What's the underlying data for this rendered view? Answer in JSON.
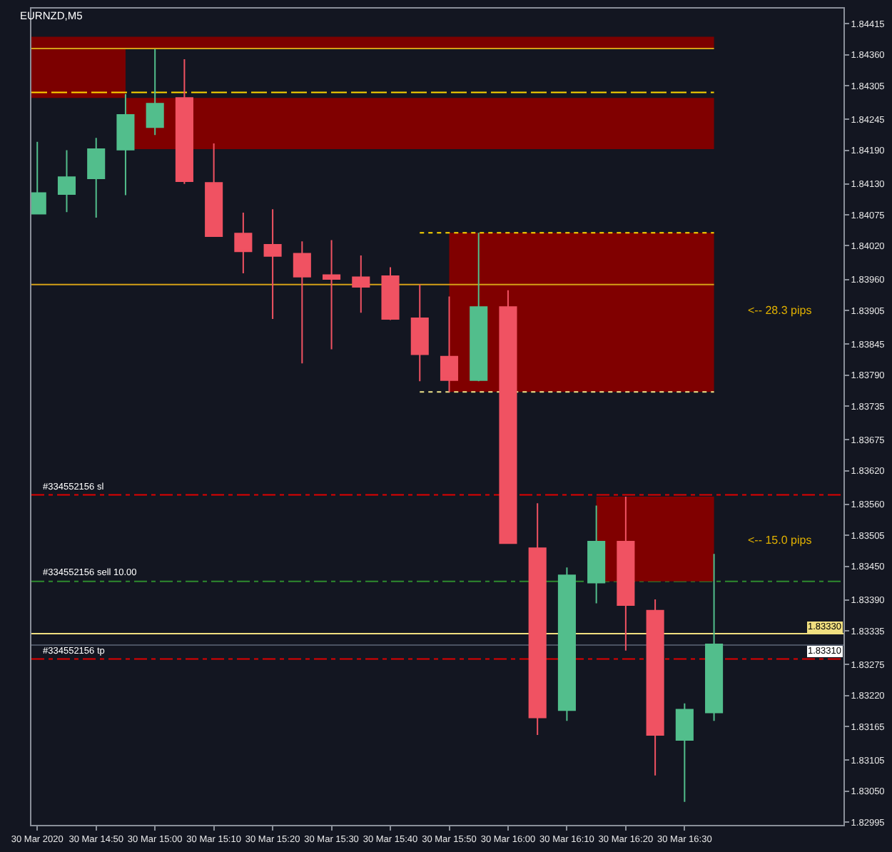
{
  "chart_data": {
    "type": "candlestick",
    "title": "EURNZD,M5",
    "x": [
      "2020-03-30T14:40",
      "2020-03-30T14:45",
      "2020-03-30T14:50",
      "2020-03-30T14:55",
      "2020-03-30T15:00",
      "2020-03-30T15:05",
      "2020-03-30T15:10",
      "2020-03-30T15:15",
      "2020-03-30T15:20",
      "2020-03-30T15:25",
      "2020-03-30T15:30",
      "2020-03-30T15:35",
      "2020-03-30T15:40",
      "2020-03-30T15:45",
      "2020-03-30T15:50",
      "2020-03-30T15:55",
      "2020-03-30T16:00",
      "2020-03-30T16:05",
      "2020-03-30T16:10",
      "2020-03-30T16:15",
      "2020-03-30T16:20",
      "2020-03-30T16:25",
      "2020-03-30T16:30",
      "2020-03-30T16:35"
    ],
    "ohlc": [
      [
        1.84077,
        1.84205,
        1.84077,
        1.84114
      ],
      [
        1.84112,
        1.8419,
        1.8408,
        1.84142
      ],
      [
        1.8414,
        1.84212,
        1.8407,
        1.84192
      ],
      [
        1.84191,
        1.8429,
        1.8411,
        1.84253
      ],
      [
        1.84231,
        1.8437,
        1.84217,
        1.84273
      ],
      [
        1.84283,
        1.84352,
        1.8413,
        1.84135
      ],
      [
        1.84132,
        1.84202,
        1.84037,
        1.84037
      ],
      [
        1.84042,
        1.84079,
        1.83971,
        1.8401
      ],
      [
        1.84022,
        1.84085,
        1.8389,
        1.84002
      ],
      [
        1.84006,
        1.84028,
        1.83811,
        1.83965
      ],
      [
        1.83968,
        1.8403,
        1.83836,
        1.83961
      ],
      [
        1.83964,
        1.84003,
        1.83901,
        1.83947
      ],
      [
        1.83966,
        1.83982,
        1.83888,
        1.8389
      ],
      [
        1.83891,
        1.83951,
        1.83779,
        1.83827
      ],
      [
        1.83823,
        1.8393,
        1.8376,
        1.83781
      ],
      [
        1.83781,
        1.84043,
        1.83779,
        1.83911
      ],
      [
        1.83911,
        1.83941,
        1.83491,
        1.83491
      ],
      [
        1.83482,
        1.83562,
        1.8315,
        1.83181
      ],
      [
        1.83194,
        1.83448,
        1.83175,
        1.83434
      ],
      [
        1.83421,
        1.83558,
        1.83384,
        1.83494
      ],
      [
        1.83494,
        1.83574,
        1.833,
        1.83381
      ],
      [
        1.83371,
        1.83391,
        1.83078,
        1.8315
      ],
      [
        1.83141,
        1.83206,
        1.83031,
        1.83195
      ],
      [
        1.8319,
        1.83472,
        1.83175,
        1.83311
      ]
    ],
    "colors": [
      "#52be8c",
      "#52be8c",
      "#52be8c",
      "#52be8c",
      "#52be8c",
      "#f05262",
      "#f05262",
      "#f05262",
      "#f05262",
      "#f05262",
      "#f05262",
      "#f05262",
      "#f05262",
      "#f05262",
      "#f05262",
      "#52be8c",
      "#f05262",
      "#f05262",
      "#52be8c",
      "#52be8c",
      "#f05262",
      "#f05262",
      "#52be8c",
      "#52be8c"
    ],
    "series": [
      {
        "type": "line",
        "x": [
          "2020-03-30T14:39",
          "2020-03-30T14:55",
          "2020-03-30T14:55",
          "2020-03-30T16:35"
        ],
        "values": [
          null,
          null,
          null,
          null
        ],
        "lower": [
          1.84283,
          1.84283,
          1.84371,
          1.84371
        ],
        "upper": [
          1.84392,
          1.84392,
          1.84392,
          1.84392
        ],
        "color": "#7c0000"
      },
      {
        "type": "line",
        "x": [
          "2020-03-30T14:55",
          "2020-03-30T16:35"
        ],
        "values": [
          null,
          null
        ],
        "lower": [
          1.84192,
          1.84192
        ],
        "upper": [
          1.84283,
          1.84283
        ],
        "color": "#800000"
      },
      {
        "type": "line",
        "x": [
          "2020-03-30T15:50",
          "2020-03-30T16:35"
        ],
        "values": [
          null,
          null
        ],
        "lower": [
          1.8376,
          1.8376
        ],
        "upper": [
          1.84043,
          1.84043
        ],
        "color": "#800000"
      },
      {
        "type": "line",
        "x": [
          "2020-03-30T16:15",
          "2020-03-30T16:35"
        ],
        "values": [
          null,
          null
        ],
        "lower": [
          1.83423,
          1.83423
        ],
        "upper": [
          1.83574,
          1.83574
        ],
        "color": "#800000"
      },
      {
        "type": "line",
        "x": [
          "2020-03-30T14:39",
          "2020-03-30T16:35"
        ],
        "values": [
          1.84371,
          1.84371
        ],
        "color": "#d4a017",
        "line_style": "solid"
      },
      {
        "type": "line",
        "x": [
          "2020-03-30T14:39",
          "2020-03-30T16:35"
        ],
        "values": [
          1.84293,
          1.84293
        ],
        "color": "#ffd700",
        "line_style": "dashed"
      },
      {
        "type": "line",
        "x": [
          "2020-03-30T15:45",
          "2020-03-30T16:35"
        ],
        "values": [
          1.84043,
          1.84043
        ],
        "color": "#ffd700",
        "line_style": "dotted"
      },
      {
        "type": "line",
        "x": [
          "2020-03-30T15:45",
          "2020-03-30T16:35"
        ],
        "values": [
          1.8376,
          1.8376
        ],
        "color": "#f0e68c",
        "line_style": "dotted"
      },
      {
        "type": "line",
        "x": [
          "2020-03-30T14:39",
          "2020-03-30T16:35"
        ],
        "values": [
          1.83951,
          1.83951
        ],
        "color": "#d4a017",
        "line_style": "solid"
      }
    ],
    "annotations": [
      {
        "text": "<-- 28.3 pips",
        "x": "2020-03-30T16:35",
        "y": 1.83905
      },
      {
        "text": "<-- 15.0 pips",
        "x": "2020-03-30T16:35",
        "y": 1.83497
      }
    ],
    "xlim": [
      "2020-03-30T14:39",
      "2020-03-30T16:57"
    ],
    "xticks": [
      {
        "value": "2020-03-30T14:40",
        "label": "30 Mar 2020"
      },
      {
        "value": "2020-03-30T14:50",
        "label": "30 Mar 14:50"
      },
      {
        "value": "2020-03-30T15:00",
        "label": "30 Mar 15:00"
      },
      {
        "value": "2020-03-30T15:10",
        "label": "30 Mar 15:10"
      },
      {
        "value": "2020-03-30T15:20",
        "label": "30 Mar 15:20"
      },
      {
        "value": "2020-03-30T15:30",
        "label": "30 Mar 15:30"
      },
      {
        "value": "2020-03-30T15:40",
        "label": "30 Mar 15:40"
      },
      {
        "value": "2020-03-30T15:50",
        "label": "30 Mar 15:50"
      },
      {
        "value": "2020-03-30T16:00",
        "label": "30 Mar 16:00"
      },
      {
        "value": "2020-03-30T16:10",
        "label": "30 Mar 16:10"
      },
      {
        "value": "2020-03-30T16:20",
        "label": "30 Mar 16:20"
      },
      {
        "value": "2020-03-30T16:30",
        "label": "30 Mar 16:30"
      }
    ],
    "ylim": [
      1.8299,
      1.84442
    ],
    "yticks": [
      1.84415,
      {
        "value": 1.8436,
        "label": "1.84360"
      },
      1.84305,
      1.84245,
      {
        "value": 1.8419,
        "label": "1.84190"
      },
      {
        "value": 1.8413,
        "label": "1.84130"
      },
      1.84075,
      {
        "value": 1.8402,
        "label": "1.84020"
      },
      {
        "value": 1.8396,
        "label": "1.83960"
      },
      1.83905,
      1.83845,
      {
        "value": 1.8379,
        "label": "1.83790"
      },
      1.83735,
      1.83675,
      {
        "value": 1.8362,
        "label": "1.83620"
      },
      {
        "value": 1.8356,
        "label": "1.83560"
      },
      1.83505,
      {
        "value": 1.8345,
        "label": "1.83450"
      },
      {
        "value": 1.8339,
        "label": "1.83390"
      },
      1.83335,
      1.83275,
      {
        "value": 1.8322,
        "label": "1.83220"
      },
      1.83165,
      1.83105,
      {
        "value": 1.8305,
        "label": "1.83050"
      },
      1.82995
    ],
    "ref_lines": [
      {
        "axis": "y",
        "value": 1.83577,
        "color": "#e00000",
        "line_style": "dashdot",
        "label": "#334552156 sl"
      },
      {
        "axis": "y",
        "value": 1.83423,
        "color": "#2e8b2e",
        "line_style": "dashdot",
        "label": "#334552156 sell 10.00"
      },
      {
        "axis": "y",
        "value": 1.8333,
        "color": "#f0df80",
        "line_style": "solid",
        "label": "1.83330"
      },
      {
        "axis": "y",
        "value": 1.8331,
        "color": "#4a5262",
        "line_style": "solid",
        "label": "1.83310"
      },
      {
        "axis": "y",
        "value": 1.83285,
        "color": "#e00000",
        "line_style": "dashdot",
        "label": "#334552156 tp"
      }
    ]
  }
}
